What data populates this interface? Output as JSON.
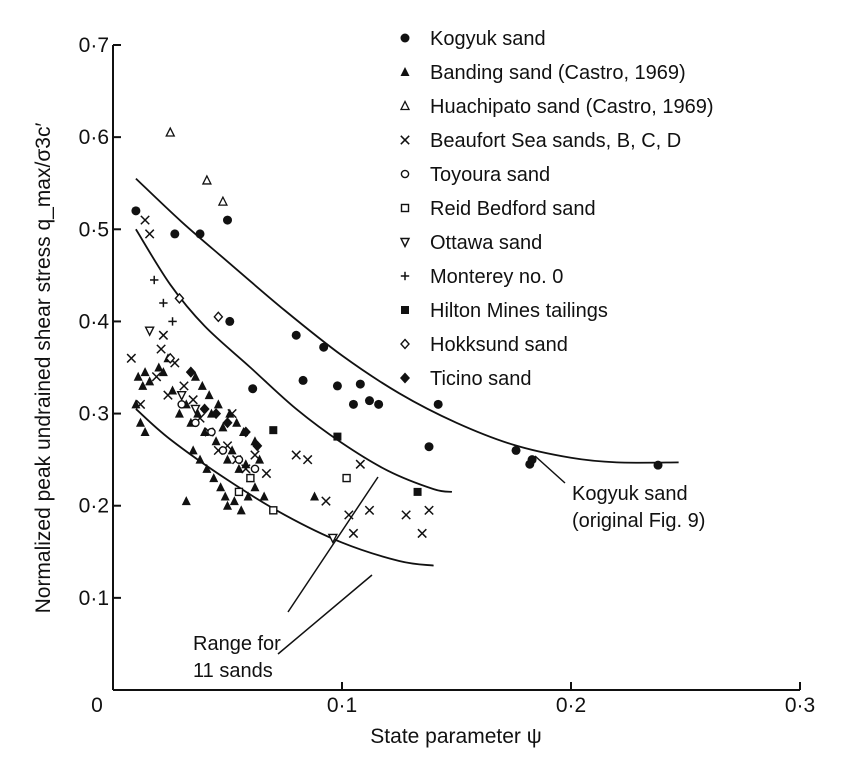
{
  "chart_data": {
    "type": "scatter",
    "title": "",
    "xlabel": "State parameter ψ",
    "ylabel": "Normalized peak undrained shear stress q_max/σ3c′",
    "xlim": [
      0,
      0.3
    ],
    "ylim": [
      0,
      0.7
    ],
    "x_ticks": [
      0,
      0.1,
      0.2,
      0.3
    ],
    "x_tick_labels": [
      "0",
      "0·1",
      "0·2",
      "0·3"
    ],
    "y_ticks": [
      0.1,
      0.2,
      0.3,
      0.4,
      0.5,
      0.6,
      0.7
    ],
    "y_tick_labels": [
      "0·1",
      "0·2",
      "0·3",
      "0·4",
      "0·5",
      "0·6",
      "0·7"
    ],
    "grid": false,
    "legend_position": "top-right",
    "series": [
      {
        "name": "Kogyuk sand",
        "marker": "filled-circle",
        "points": [
          [
            0.01,
            0.52
          ],
          [
            0.027,
            0.495
          ],
          [
            0.038,
            0.495
          ],
          [
            0.05,
            0.51
          ],
          [
            0.051,
            0.4
          ],
          [
            0.061,
            0.327
          ],
          [
            0.08,
            0.385
          ],
          [
            0.083,
            0.336
          ],
          [
            0.092,
            0.372
          ],
          [
            0.098,
            0.33
          ],
          [
            0.105,
            0.31
          ],
          [
            0.108,
            0.332
          ],
          [
            0.112,
            0.314
          ],
          [
            0.116,
            0.31
          ],
          [
            0.138,
            0.264
          ],
          [
            0.142,
            0.31
          ],
          [
            0.176,
            0.26
          ],
          [
            0.182,
            0.245
          ],
          [
            0.183,
            0.25
          ],
          [
            0.238,
            0.244
          ]
        ]
      },
      {
        "name": "Banding sand (Castro, 1969)",
        "marker": "filled-triangle",
        "points": [
          [
            0.011,
            0.34
          ],
          [
            0.013,
            0.33
          ],
          [
            0.014,
            0.345
          ],
          [
            0.016,
            0.335
          ],
          [
            0.02,
            0.35
          ],
          [
            0.022,
            0.345
          ],
          [
            0.024,
            0.36
          ],
          [
            0.026,
            0.325
          ],
          [
            0.029,
            0.3
          ],
          [
            0.032,
            0.31
          ],
          [
            0.034,
            0.29
          ],
          [
            0.037,
            0.3
          ],
          [
            0.04,
            0.28
          ],
          [
            0.043,
            0.3
          ],
          [
            0.045,
            0.27
          ],
          [
            0.048,
            0.285
          ],
          [
            0.05,
            0.25
          ],
          [
            0.052,
            0.26
          ],
          [
            0.055,
            0.24
          ],
          [
            0.058,
            0.245
          ],
          [
            0.06,
            0.23
          ],
          [
            0.062,
            0.22
          ],
          [
            0.064,
            0.25
          ],
          [
            0.066,
            0.21
          ],
          [
            0.035,
            0.26
          ],
          [
            0.038,
            0.25
          ],
          [
            0.041,
            0.24
          ],
          [
            0.044,
            0.23
          ],
          [
            0.047,
            0.22
          ],
          [
            0.05,
            0.2
          ],
          [
            0.053,
            0.205
          ],
          [
            0.056,
            0.195
          ],
          [
            0.059,
            0.21
          ],
          [
            0.01,
            0.31
          ],
          [
            0.012,
            0.29
          ],
          [
            0.014,
            0.28
          ],
          [
            0.032,
            0.205
          ],
          [
            0.049,
            0.21
          ],
          [
            0.062,
            0.27
          ],
          [
            0.057,
            0.28
          ],
          [
            0.054,
            0.29
          ],
          [
            0.051,
            0.3
          ],
          [
            0.046,
            0.31
          ],
          [
            0.042,
            0.32
          ],
          [
            0.039,
            0.33
          ],
          [
            0.036,
            0.34
          ],
          [
            0.088,
            0.21
          ]
        ]
      },
      {
        "name": "Huachipato sand (Castro, 1969)",
        "marker": "open-triangle",
        "points": [
          [
            0.025,
            0.605
          ],
          [
            0.041,
            0.553
          ],
          [
            0.048,
            0.53
          ]
        ]
      },
      {
        "name": "Beaufort Sea sands, B, C, D",
        "marker": "cross",
        "points": [
          [
            0.008,
            0.36
          ],
          [
            0.012,
            0.31
          ],
          [
            0.014,
            0.51
          ],
          [
            0.016,
            0.495
          ],
          [
            0.019,
            0.34
          ],
          [
            0.021,
            0.37
          ],
          [
            0.022,
            0.385
          ],
          [
            0.024,
            0.32
          ],
          [
            0.027,
            0.355
          ],
          [
            0.031,
            0.33
          ],
          [
            0.035,
            0.315
          ],
          [
            0.038,
            0.295
          ],
          [
            0.042,
            0.28
          ],
          [
            0.046,
            0.26
          ],
          [
            0.05,
            0.265
          ],
          [
            0.054,
            0.25
          ],
          [
            0.058,
            0.24
          ],
          [
            0.062,
            0.255
          ],
          [
            0.067,
            0.235
          ],
          [
            0.052,
            0.3
          ],
          [
            0.08,
            0.255
          ],
          [
            0.085,
            0.25
          ],
          [
            0.093,
            0.205
          ],
          [
            0.103,
            0.19
          ],
          [
            0.108,
            0.245
          ],
          [
            0.112,
            0.195
          ],
          [
            0.128,
            0.19
          ],
          [
            0.135,
            0.17
          ],
          [
            0.138,
            0.195
          ],
          [
            0.105,
            0.17
          ]
        ]
      },
      {
        "name": "Toyoura sand",
        "marker": "open-circle",
        "points": [
          [
            0.03,
            0.31
          ],
          [
            0.036,
            0.29
          ],
          [
            0.043,
            0.28
          ],
          [
            0.048,
            0.26
          ],
          [
            0.055,
            0.25
          ],
          [
            0.062,
            0.24
          ]
        ]
      },
      {
        "name": "Reid Bedford sand",
        "marker": "open-square",
        "points": [
          [
            0.07,
            0.195
          ],
          [
            0.055,
            0.215
          ],
          [
            0.06,
            0.23
          ],
          [
            0.102,
            0.23
          ]
        ]
      },
      {
        "name": "Ottawa sand",
        "marker": "open-inverted-triangle",
        "points": [
          [
            0.016,
            0.39
          ],
          [
            0.03,
            0.32
          ],
          [
            0.036,
            0.305
          ],
          [
            0.096,
            0.165
          ]
        ]
      },
      {
        "name": "Monterey no. 0",
        "marker": "plus",
        "points": [
          [
            0.018,
            0.445
          ],
          [
            0.022,
            0.42
          ],
          [
            0.026,
            0.4
          ]
        ]
      },
      {
        "name": "Hilton Mines tailings",
        "marker": "filled-square",
        "points": [
          [
            0.07,
            0.282
          ],
          [
            0.098,
            0.275
          ],
          [
            0.133,
            0.215
          ]
        ]
      },
      {
        "name": "Hokksund sand",
        "marker": "open-diamond",
        "points": [
          [
            0.025,
            0.36
          ],
          [
            0.029,
            0.425
          ],
          [
            0.034,
            0.345
          ],
          [
            0.046,
            0.405
          ]
        ]
      },
      {
        "name": "Ticino sand",
        "marker": "filled-diamond",
        "points": [
          [
            0.034,
            0.345
          ],
          [
            0.04,
            0.305
          ],
          [
            0.045,
            0.3
          ],
          [
            0.05,
            0.29
          ],
          [
            0.058,
            0.28
          ],
          [
            0.063,
            0.265
          ]
        ]
      }
    ],
    "curves": [
      {
        "kind": "kogyuk-original",
        "points": [
          [
            0.01,
            0.555
          ],
          [
            0.03,
            0.508
          ],
          [
            0.05,
            0.465
          ],
          [
            0.075,
            0.412
          ],
          [
            0.1,
            0.363
          ],
          [
            0.125,
            0.322
          ],
          [
            0.15,
            0.29
          ],
          [
            0.175,
            0.266
          ],
          [
            0.2,
            0.252
          ],
          [
            0.22,
            0.247
          ],
          [
            0.247,
            0.247
          ]
        ]
      },
      {
        "kind": "range-upper",
        "points": [
          [
            0.01,
            0.5
          ],
          [
            0.025,
            0.44
          ],
          [
            0.04,
            0.395
          ],
          [
            0.06,
            0.35
          ],
          [
            0.08,
            0.305
          ],
          [
            0.1,
            0.268
          ],
          [
            0.12,
            0.238
          ],
          [
            0.14,
            0.218
          ],
          [
            0.148,
            0.215
          ]
        ]
      },
      {
        "kind": "range-lower",
        "points": [
          [
            0.01,
            0.305
          ],
          [
            0.025,
            0.272
          ],
          [
            0.05,
            0.228
          ],
          [
            0.075,
            0.19
          ],
          [
            0.1,
            0.16
          ],
          [
            0.125,
            0.14
          ],
          [
            0.14,
            0.135
          ]
        ]
      }
    ],
    "annotations": [
      {
        "text_lines": [
          "Kogyuk sand",
          "(original Fig. 9)"
        ]
      },
      {
        "text_lines": [
          "Range for",
          "11 sands"
        ]
      }
    ]
  }
}
